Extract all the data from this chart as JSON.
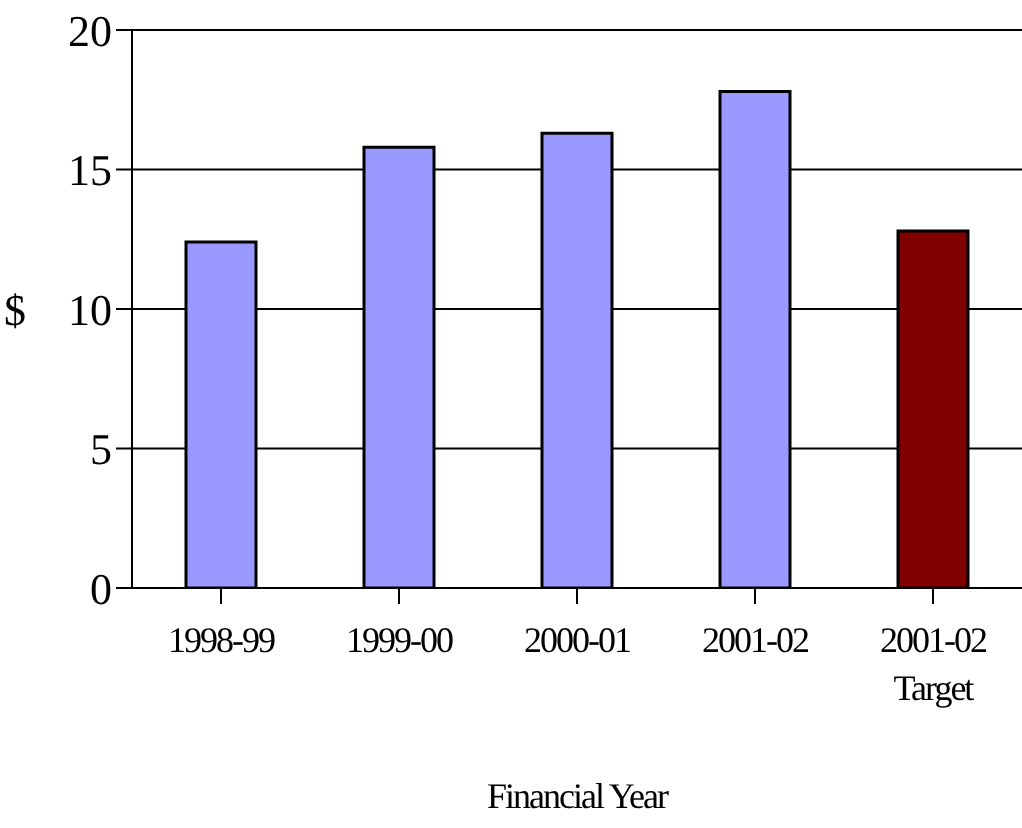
{
  "chart_data": {
    "type": "bar",
    "ylabel": "$",
    "xlabel": "Financial Year",
    "categories": [
      "1998-99",
      "1999-00",
      "2000-01",
      "2001-02",
      "2001-02 Target"
    ],
    "values": [
      12.4,
      15.8,
      16.3,
      17.8,
      12.8
    ],
    "colors": [
      "#9999ff",
      "#9999ff",
      "#9999ff",
      "#9999ff",
      "#800000"
    ],
    "ylim": [
      0,
      20
    ],
    "yticks": [
      0,
      5,
      10,
      15,
      20
    ],
    "grid": "y"
  }
}
